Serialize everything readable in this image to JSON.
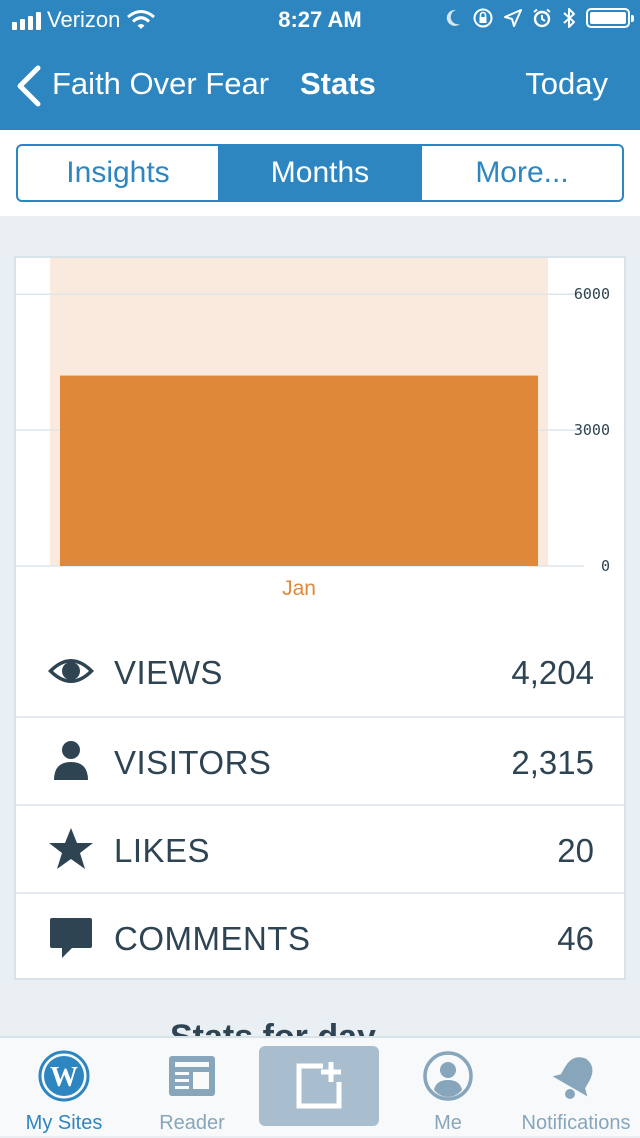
{
  "status_bar": {
    "carrier": "Verizon",
    "time": "8:27 AM"
  },
  "nav": {
    "site_name": "Faith Over Fear",
    "title": "Stats",
    "right_button": "Today"
  },
  "segments": [
    {
      "label": "Insights",
      "selected": false
    },
    {
      "label": "Months",
      "selected": true
    },
    {
      "label": "More...",
      "selected": false
    }
  ],
  "chart_data": {
    "type": "bar",
    "categories": [
      "Jan"
    ],
    "values": [
      4204
    ],
    "ylim": [
      0,
      6800
    ],
    "yticks": [
      0,
      3000,
      6000
    ],
    "ytick_labels": [
      "0",
      "3000",
      "6000"
    ],
    "grid": true,
    "bar_color": "#e0883a",
    "highlight_color": "#faeadd",
    "category_label_color": "#e0883a"
  },
  "stats": [
    {
      "icon": "eye-icon",
      "label": "VIEWS",
      "value": "4,204"
    },
    {
      "icon": "person-icon",
      "label": "VISITORS",
      "value": "2,315"
    },
    {
      "icon": "star-icon",
      "label": "LIKES",
      "value": "20"
    },
    {
      "icon": "comment-icon",
      "label": "COMMENTS",
      "value": "46"
    }
  ],
  "peek_heading": "Stats for day",
  "tabs": [
    {
      "label": "My Sites",
      "icon": "wordpress-icon",
      "active": true
    },
    {
      "label": "Reader",
      "icon": "reader-icon",
      "active": false
    },
    {
      "label": "",
      "icon": "write-post-icon",
      "active": false
    },
    {
      "label": "Me",
      "icon": "profile-icon",
      "active": false
    },
    {
      "label": "Notifications",
      "icon": "bell-icon",
      "active": false
    }
  ],
  "colors": {
    "accent": "#2e86c1",
    "text": "#2e4453",
    "muted": "#87a6bc"
  }
}
